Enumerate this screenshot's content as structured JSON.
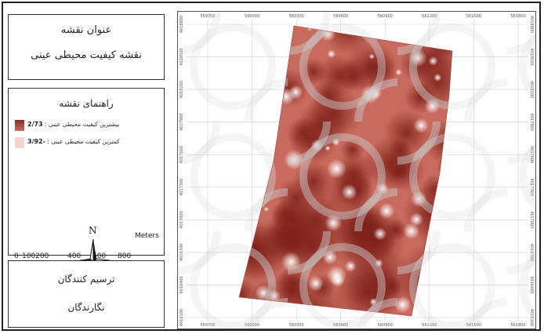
{
  "title_panel": {
    "label": "عنوان نقشه",
    "text": "نقشه کیفیت محیطی عینی"
  },
  "legend": {
    "heading": "راهنمای نقشه",
    "high_value": "2/73",
    "high_label": "بیشترین کیفیت محیطی عینی : ",
    "low_value": "-3/92",
    "low_label": "کمترین کیفیت محیطی عینی : ",
    "high_color": "#8b2a22",
    "low_color": "#f2d6d0",
    "north_label": "N",
    "scale_labels": [
      "0",
      "100200",
      "400",
      "600",
      "800"
    ],
    "scale_unit": "Meters"
  },
  "credits": {
    "cartography": "ترسیم کنندگان",
    "authors": "نگارندگان"
  },
  "map": {
    "x_ticks": [
      "559700",
      "560000",
      "560300",
      "560600",
      "560900",
      "561200",
      "561500",
      "561800"
    ],
    "y_ticks": [
      "4016100",
      "4016400",
      "4016700",
      "4017000",
      "4017300",
      "4017600",
      "4017900",
      "4018200",
      "4018500",
      "4018800"
    ],
    "surface_high_color": "#8b2a22",
    "surface_low_color": "#f6e4e0"
  }
}
